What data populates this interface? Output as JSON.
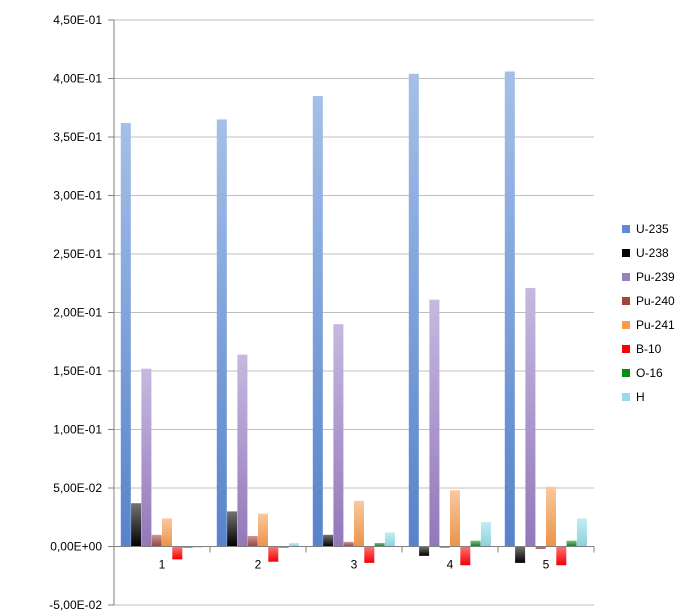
{
  "chart_data": {
    "type": "bar",
    "title": "",
    "xlabel": "",
    "ylabel": "",
    "categories": [
      "1",
      "2",
      "3",
      "4",
      "5"
    ],
    "ylim": [
      -0.05,
      0.45
    ],
    "yticks": [
      -0.05,
      0,
      0.05,
      0.1,
      0.15,
      0.2,
      0.25,
      0.3,
      0.35,
      0.4,
      0.45
    ],
    "ytick_labels": [
      "-5,00E-02",
      "0,00E+00",
      "5,00E-02",
      "1,00E-01",
      "1,50E-01",
      "2,00E-01",
      "2,50E-01",
      "3,00E-01",
      "3,50E-01",
      "4,00E-01",
      "4,50E-01"
    ],
    "grid": "horizontal",
    "legend_position": "right",
    "series": [
      {
        "name": "U-235",
        "color": "#5b8ad6",
        "values": [
          0.362,
          0.365,
          0.385,
          0.404,
          0.406
        ]
      },
      {
        "name": "U-238",
        "color": "#000000",
        "values": [
          0.037,
          0.03,
          0.01,
          -0.008,
          -0.014
        ]
      },
      {
        "name": "Pu-239",
        "color": "#9a7ec4",
        "values": [
          0.152,
          0.164,
          0.19,
          0.211,
          0.221
        ]
      },
      {
        "name": "Pu-240",
        "color": "#a3443e",
        "values": [
          0.01,
          0.009,
          0.004,
          -0.001,
          -0.002
        ]
      },
      {
        "name": "Pu-241",
        "color": "#f79b4e",
        "values": [
          0.024,
          0.028,
          0.039,
          0.048,
          0.051
        ]
      },
      {
        "name": "B-10",
        "color": "#ff0000",
        "values": [
          -0.011,
          -0.013,
          -0.014,
          -0.016,
          -0.016
        ]
      },
      {
        "name": "O-16",
        "color": "#0b8a18",
        "values": [
          -0.001,
          -0.001,
          0.003,
          0.005,
          0.005
        ]
      },
      {
        "name": "H",
        "color": "#92dcea",
        "values": [
          0.0,
          0.003,
          0.012,
          0.021,
          0.024
        ]
      }
    ]
  }
}
